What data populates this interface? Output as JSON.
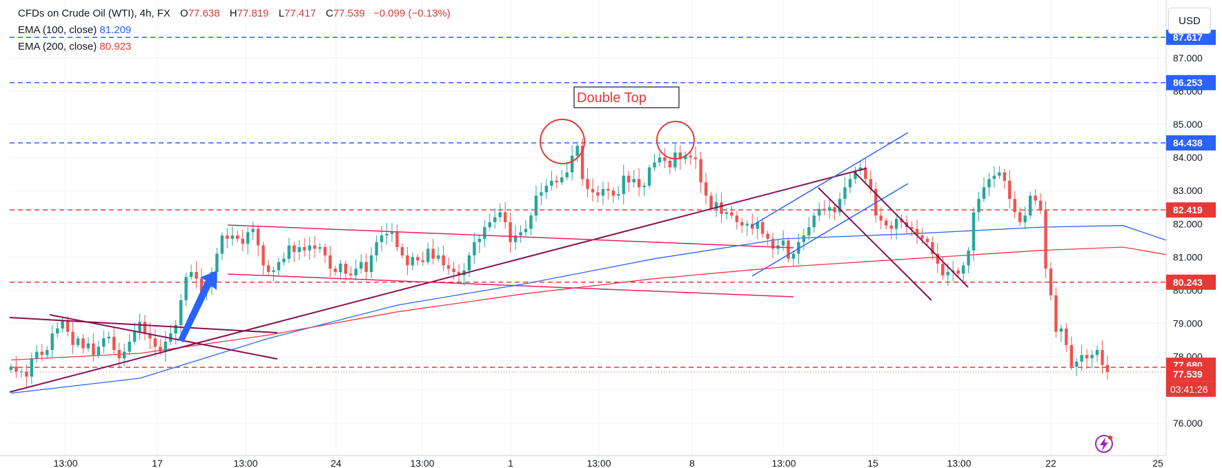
{
  "legend": {
    "symbol": "CFDs on Crude Oil (WTI), 4h, FX",
    "o_label": "O",
    "o_value": "77.638",
    "h_label": "H",
    "h_value": "77.819",
    "l_label": "L",
    "l_value": "77.417",
    "c_label": "C",
    "c_value": "77.539",
    "change": "−0.099 (−0.13%)",
    "ema100_label": "EMA (100, close)",
    "ema100_value": "81.209",
    "ema200_label": "EMA (200, close)",
    "ema200_value": "80.923"
  },
  "currency_button": "USD",
  "annotation": "Double Top",
  "colors": {
    "up": "#26a69a",
    "down": "#ef5350",
    "ema100": "#2962ff",
    "ema200": "#f23645",
    "level_blue": "#2962ff",
    "level_red": "#e53935",
    "channel": "#e91e63",
    "trend": "#880e4f"
  },
  "chart_data": {
    "type": "candlestick",
    "timeframe": "4h",
    "ylim": [
      75.2,
      88.2
    ],
    "yticks": [
      "76.000",
      "77.000",
      "78.000",
      "79.000",
      "80.000",
      "81.000",
      "82.000",
      "83.000",
      "84.000",
      "85.000",
      "86.000",
      "87.000"
    ],
    "price_labels": [
      {
        "value": 87.617,
        "text": "87.617",
        "color": "#2962ff"
      },
      {
        "value": 86.253,
        "text": "86.253",
        "color": "#2962ff"
      },
      {
        "value": 84.438,
        "text": "84.438",
        "color": "#2962ff"
      },
      {
        "value": 82.419,
        "text": "82.419",
        "color": "#e53935"
      },
      {
        "value": 80.243,
        "text": "80.243",
        "color": "#e53935"
      },
      {
        "value": 77.68,
        "text": "77.680",
        "color": "#e53935"
      },
      {
        "value": 77.539,
        "text": "77.539",
        "color": "#e53935"
      }
    ],
    "countdown": "03:41:26",
    "horizontal_levels": [
      {
        "value": 87.617,
        "color": "blue"
      },
      {
        "value": 86.253,
        "color": "blue"
      },
      {
        "value": 84.438,
        "color": "blue"
      },
      {
        "value": 82.419,
        "color": "red"
      },
      {
        "value": 80.243,
        "color": "red"
      },
      {
        "value": 77.68,
        "color": "red"
      }
    ],
    "x_tick_labels": [
      "13:00",
      "17",
      "13:00",
      "24",
      "13:00",
      "1",
      "13:00",
      "8",
      "13:00",
      "15",
      "13:00",
      "22",
      "25"
    ],
    "closes": [
      77.7,
      77.55,
      77.55,
      77.4,
      77.95,
      78.15,
      78.05,
      78.2,
      78.7,
      78.85,
      79.1,
      78.75,
      78.35,
      78.55,
      78.25,
      78.4,
      78.05,
      78.3,
      78.55,
      78.6,
      78.2,
      77.95,
      78.15,
      78.45,
      78.75,
      79.05,
      78.7,
      78.55,
      78.3,
      78.15,
      78.45,
      78.7,
      78.95,
      79.7,
      80.4,
      80.55,
      80.35,
      79.95,
      80.1,
      80.55,
      81.1,
      81.65,
      81.55,
      81.65,
      81.55,
      81.4,
      81.75,
      81.85,
      81.35,
      80.75,
      80.55,
      80.6,
      80.85,
      80.95,
      81.35,
      81.15,
      81.3,
      81.2,
      81.35,
      81.25,
      81.3,
      81.05,
      80.65,
      80.55,
      80.8,
      80.5,
      80.45,
      80.65,
      80.85,
      80.55,
      81.05,
      81.45,
      81.65,
      81.7,
      81.75,
      81.3,
      81.05,
      80.75,
      81.0,
      80.9,
      80.85,
      81.25,
      80.95,
      81.05,
      80.75,
      80.65,
      80.55,
      80.45,
      80.6,
      81.05,
      81.45,
      81.55,
      81.9,
      82.05,
      82.2,
      82.35,
      82.05,
      81.45,
      81.65,
      81.75,
      81.85,
      82.25,
      82.85,
      82.95,
      83.15,
      83.3,
      83.25,
      83.4,
      83.55,
      84.05,
      84.35,
      83.35,
      83.05,
      82.95,
      82.85,
      83.05,
      83.0,
      82.85,
      82.9,
      83.45,
      83.25,
      83.35,
      83.1,
      83.15,
      83.7,
      83.85,
      84.0,
      83.9,
      83.7,
      84.15,
      83.95,
      84.05,
      84.0,
      83.95,
      83.25,
      82.85,
      82.45,
      82.65,
      82.3,
      82.35,
      82.25,
      82.05,
      81.95,
      82.0,
      81.85,
      82.05,
      81.7,
      81.55,
      81.25,
      81.35,
      81.5,
      80.95,
      81.1,
      81.45,
      81.65,
      81.9,
      82.25,
      82.45,
      82.4,
      82.5,
      82.35,
      82.75,
      83.1,
      83.35,
      83.6,
      83.7,
      83.35,
      83.05,
      82.25,
      82.1,
      81.95,
      81.85,
      82.15,
      82.05,
      81.9,
      81.85,
      81.65,
      81.55,
      81.45,
      81.1,
      80.8,
      80.45,
      80.55,
      80.6,
      80.5,
      80.75,
      81.2,
      82.35,
      82.75,
      83.1,
      83.35,
      83.45,
      83.55,
      83.3,
      82.75,
      82.35,
      82.05,
      82.25,
      82.85,
      82.7,
      82.4,
      80.65,
      79.85,
      78.75,
      78.85,
      78.35,
      77.7,
      77.85,
      78.05,
      77.95,
      78.05,
      78.2,
      77.75,
      77.539
    ],
    "ema100": [
      [
        0,
        76.9
      ],
      [
        25,
        77.35
      ],
      [
        50,
        78.55
      ],
      [
        75,
        79.55
      ],
      [
        100,
        80.2
      ],
      [
        125,
        80.95
      ],
      [
        150,
        81.55
      ],
      [
        175,
        81.7
      ],
      [
        200,
        81.9
      ],
      [
        216,
        81.95
      ],
      [
        230,
        81.209
      ]
    ],
    "ema200": [
      [
        0,
        77.9
      ],
      [
        25,
        78.1
      ],
      [
        50,
        78.65
      ],
      [
        75,
        79.35
      ],
      [
        100,
        79.9
      ],
      [
        125,
        80.35
      ],
      [
        150,
        80.7
      ],
      [
        175,
        80.95
      ],
      [
        200,
        81.2
      ],
      [
        216,
        81.3
      ],
      [
        230,
        80.923
      ]
    ]
  }
}
